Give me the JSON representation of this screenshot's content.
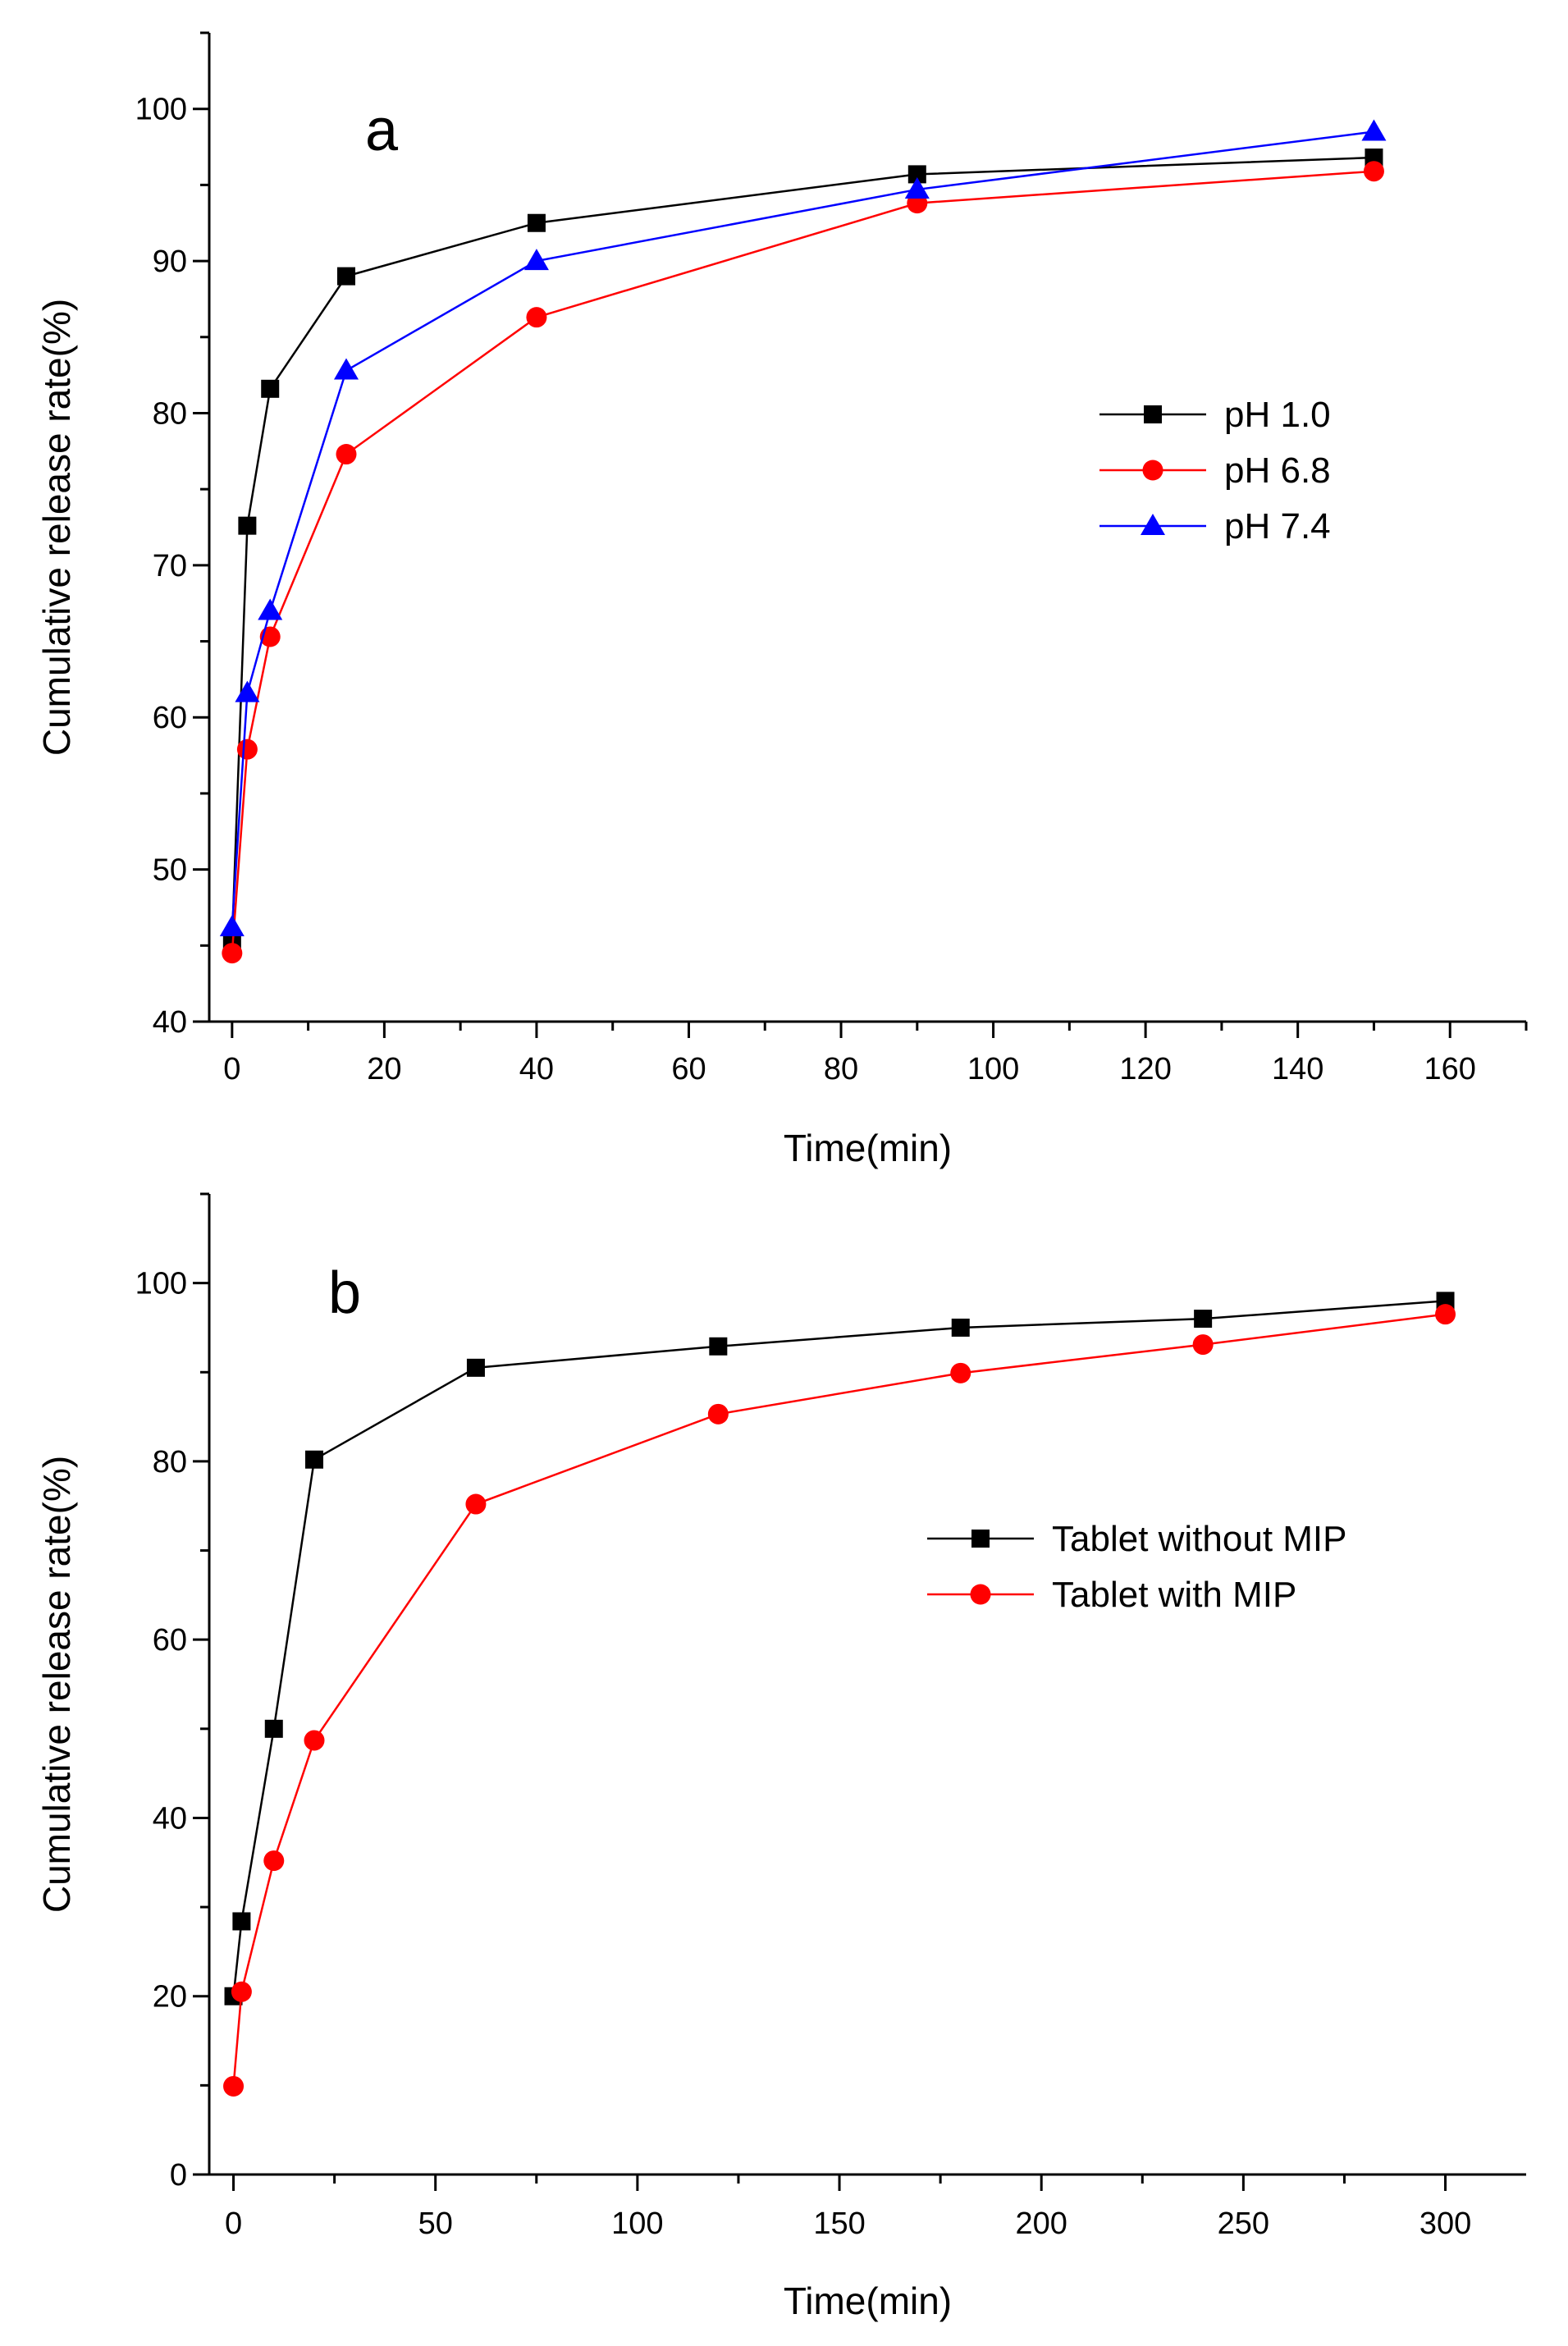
{
  "chart_data": [
    {
      "panel_label": "a",
      "type": "line",
      "xlabel": "Time(min)",
      "ylabel": "Cumulative release rate(%)",
      "xlim": [
        -3,
        170
      ],
      "ylim": [
        40,
        105
      ],
      "xticks": [
        0,
        20,
        40,
        60,
        80,
        100,
        120,
        140,
        160
      ],
      "yticks": [
        40,
        50,
        60,
        70,
        80,
        90,
        100
      ],
      "x_minor_step": 10,
      "y_minor_step": 5,
      "grid": false,
      "legend_position": "right-middle",
      "series": [
        {
          "name": "pH 1.0",
          "color": "#000000",
          "marker": "square",
          "x": [
            0,
            2,
            5,
            15,
            40,
            90,
            150
          ],
          "y": [
            45.3,
            72.6,
            81.6,
            89.0,
            92.5,
            95.7,
            96.8
          ]
        },
        {
          "name": "pH 6.8",
          "color": "#ff0000",
          "marker": "circle",
          "x": [
            0,
            2,
            5,
            15,
            40,
            90,
            150
          ],
          "y": [
            44.5,
            57.9,
            65.3,
            77.3,
            86.3,
            93.8,
            95.9
          ]
        },
        {
          "name": "pH 7.4",
          "color": "#0000ff",
          "marker": "triangle",
          "x": [
            0,
            2,
            5,
            15,
            40,
            90,
            150
          ],
          "y": [
            46.2,
            61.6,
            67.0,
            82.8,
            90.0,
            94.7,
            98.5
          ]
        }
      ]
    },
    {
      "panel_label": "b",
      "type": "line",
      "xlabel": "Time(min)",
      "ylabel": "Cumulative release rate(%)",
      "xlim": [
        -6,
        320
      ],
      "ylim": [
        0,
        110
      ],
      "xticks": [
        0,
        50,
        100,
        150,
        200,
        250,
        300
      ],
      "yticks": [
        0,
        20,
        40,
        60,
        80,
        100
      ],
      "x_minor_step": 25,
      "y_minor_step": 10,
      "grid": false,
      "legend_position": "right-middle",
      "series": [
        {
          "name": "Tablet without MIP",
          "color": "#000000",
          "marker": "square",
          "x": [
            0,
            2,
            10,
            20,
            60,
            120,
            180,
            240,
            300
          ],
          "y": [
            20.0,
            28.4,
            50.0,
            80.2,
            90.5,
            92.9,
            95.0,
            96.0,
            98.0
          ]
        },
        {
          "name": "Tablet with MIP",
          "color": "#ff0000",
          "marker": "circle",
          "x": [
            0,
            2,
            10,
            20,
            60,
            120,
            180,
            240,
            300
          ],
          "y": [
            9.9,
            20.5,
            35.2,
            48.7,
            75.2,
            85.3,
            89.9,
            93.1,
            96.5
          ]
        }
      ]
    }
  ]
}
